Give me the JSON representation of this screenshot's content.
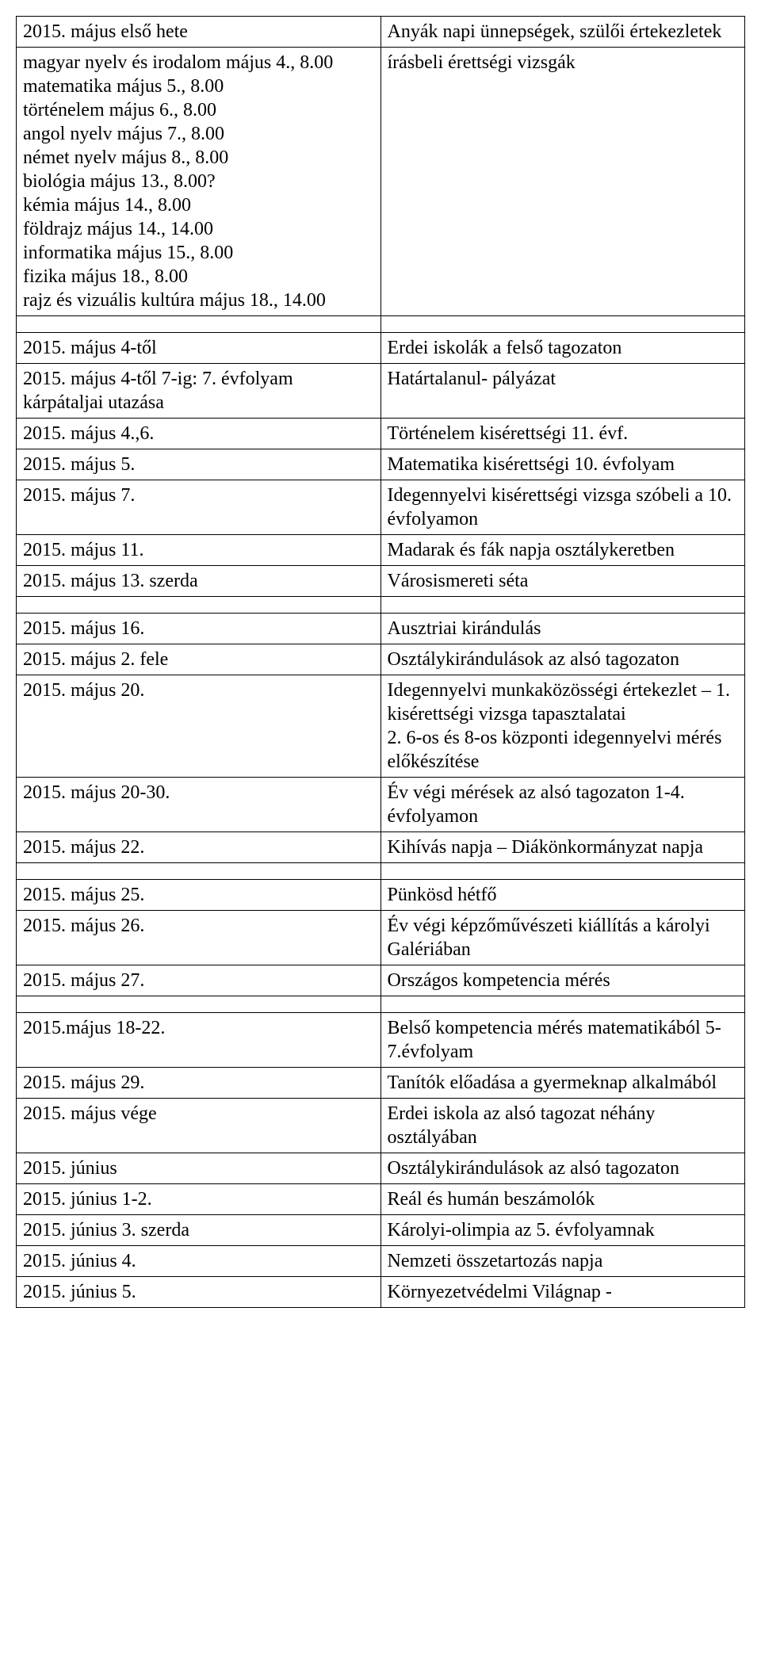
{
  "rows": [
    {
      "left": "2015. május első hete",
      "right": "Anyák napi ünnepségek, szülői értekezletek"
    },
    {
      "left": "magyar nyelv és irodalom május 4., 8.00\nmatematika május 5., 8.00\ntörténelem május 6., 8.00\nangol nyelv május 7., 8.00\nnémet nyelv május 8., 8.00\nbiológia május 13., 8.00?\nkémia május 14., 8.00\nföldrajz május 14., 14.00\ninformatika május 15., 8.00\nfizika május 18., 8.00\nrajz és vizuális kultúra május 18., 14.00",
      "right": "írásbeli érettségi vizsgák"
    },
    {
      "spacer": true
    },
    {
      "left": "2015. május 4-től",
      "right": "Erdei iskolák a felső tagozaton"
    },
    {
      "left": "2015. május 4-től 7-ig: 7. évfolyam kárpátaljai utazása",
      "right": "Határtalanul- pályázat"
    },
    {
      "left": "2015. május 4.,6.",
      "right": "Történelem kisérettségi 11. évf."
    },
    {
      "left": "2015. május 5.",
      "right": "Matematika kisérettségi 10. évfolyam"
    },
    {
      "left": "2015. május 7.",
      "right": "Idegennyelvi kisérettségi vizsga szóbeli a 10. évfolyamon"
    },
    {
      "left": "2015. május 11.",
      "right": "Madarak és fák napja osztálykeretben"
    },
    {
      "left": "2015. május 13. szerda",
      "right": "Városismereti séta"
    },
    {
      "spacer": true
    },
    {
      "left": "2015. május 16.",
      "right": "Ausztriai kirándulás"
    },
    {
      "left": "2015. május 2. fele",
      "right": "Osztálykirándulások az alsó tagozaton"
    },
    {
      "left": "2015. május 20.",
      "right": "Idegennyelvi munkaközösségi értekezlet – 1. kisérettségi vizsga tapasztalatai\n2. 6-os és 8-os központi idegennyelvi mérés előkészítése"
    },
    {
      "left": "2015. május 20-30.",
      "right": "Év végi mérések az alsó tagozaton 1-4. évfolyamon"
    },
    {
      "left": "2015. május 22.",
      "right": "Kihívás napja – Diákönkormányzat napja"
    },
    {
      "spacer": true
    },
    {
      "left": "2015. május 25.",
      "right": "Pünkösd hétfő"
    },
    {
      "left": "2015. május 26.",
      "right": "Év végi képzőművészeti kiállítás a károlyi Galériában"
    },
    {
      "left": "2015. május 27.",
      "right": "Országos kompetencia mérés"
    },
    {
      "spacer": true
    },
    {
      "left": "2015.május 18-22.",
      "right": "Belső kompetencia mérés matematikából 5-7.évfolyam"
    },
    {
      "left": "2015. május 29.",
      "right": "Tanítók előadása a gyermeknap alkalmából"
    },
    {
      "left": "2015. május vége",
      "right": "Erdei iskola az alsó tagozat néhány osztályában"
    },
    {
      "left": "2015. június",
      "right": "Osztálykirándulások az alsó tagozaton"
    },
    {
      "left": "2015. június 1-2.",
      "right": "Reál és humán beszámolók"
    },
    {
      "left": "2015. június 3. szerda",
      "right": "Károlyi-olimpia az 5. évfolyamnak"
    },
    {
      "left": "2015. június 4.",
      "right": "Nemzeti összetartozás napja"
    },
    {
      "left": "2015. június 5.",
      "right": "Környezetvédelmi Világnap -"
    }
  ]
}
